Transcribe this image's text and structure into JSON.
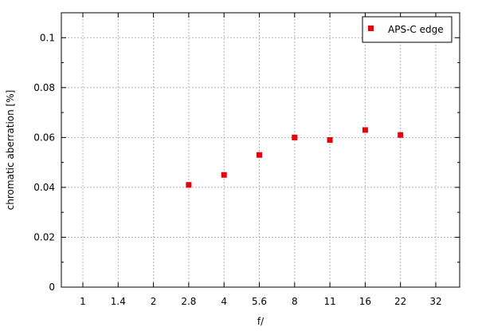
{
  "chart_data": {
    "type": "scatter",
    "title": "",
    "xlabel": "f/",
    "ylabel": "chromatic aberration [%]",
    "x_categories": [
      "1",
      "1.4",
      "2",
      "2.8",
      "4",
      "5.6",
      "8",
      "11",
      "16",
      "22",
      "32"
    ],
    "y_ticks": [
      "0",
      "0.02",
      "0.04",
      "0.06",
      "0.08",
      "0.1"
    ],
    "ylim": [
      0,
      0.11
    ],
    "grid": true,
    "legend_position": "top-right",
    "series": [
      {
        "name": "APS-C edge",
        "color": "#e8000b",
        "marker": "square",
        "points": [
          {
            "x": "2.8",
            "y": 0.041
          },
          {
            "x": "4",
            "y": 0.045
          },
          {
            "x": "5.6",
            "y": 0.053
          },
          {
            "x": "8",
            "y": 0.06
          },
          {
            "x": "11",
            "y": 0.059
          },
          {
            "x": "16",
            "y": 0.063
          },
          {
            "x": "22",
            "y": 0.061
          }
        ]
      }
    ]
  }
}
